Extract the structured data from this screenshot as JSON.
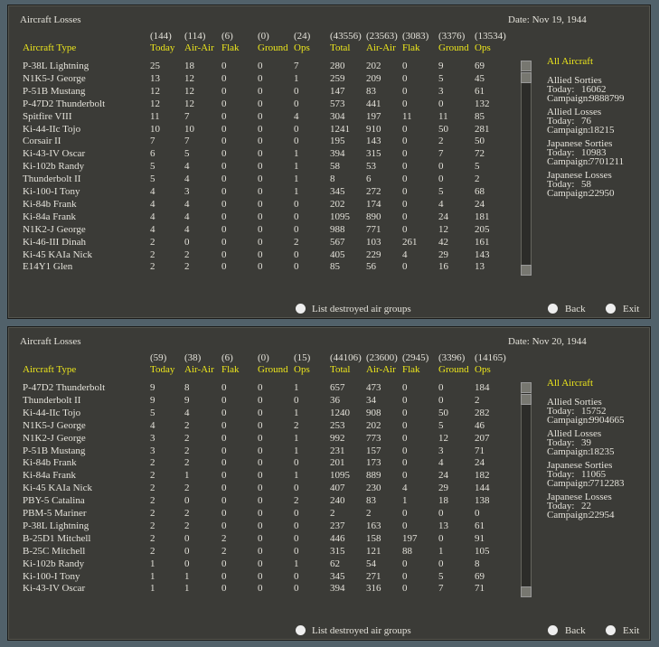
{
  "panels": [
    {
      "title": "Aircraft Losses",
      "date": "Date: Nov 19, 1944",
      "totals": [
        "(144)",
        "(114)",
        "(6)",
        "(0)",
        "(24)",
        "(43556)",
        "(23563)",
        "(3083)",
        "(3376)",
        "(13534)"
      ],
      "headers": [
        "Aircraft Type",
        "Today",
        "Air-Air",
        "Flak",
        "Ground",
        "Ops",
        "Total",
        "Air-Air",
        "Flak",
        "Ground",
        "Ops"
      ],
      "rows": [
        [
          "P-38L Lightning",
          25,
          18,
          0,
          0,
          7,
          280,
          202,
          0,
          9,
          69
        ],
        [
          "N1K5-J George",
          13,
          12,
          0,
          0,
          1,
          259,
          209,
          0,
          5,
          45
        ],
        [
          "P-51B Mustang",
          12,
          12,
          0,
          0,
          0,
          147,
          83,
          0,
          3,
          61
        ],
        [
          "P-47D2 Thunderbolt",
          12,
          12,
          0,
          0,
          0,
          573,
          441,
          0,
          0,
          132
        ],
        [
          "Spitfire VIII",
          11,
          7,
          0,
          0,
          4,
          304,
          197,
          11,
          11,
          85
        ],
        [
          "Ki-44-IIc Tojo",
          10,
          10,
          0,
          0,
          0,
          1241,
          910,
          0,
          50,
          281
        ],
        [
          "Corsair II",
          7,
          7,
          0,
          0,
          0,
          195,
          143,
          0,
          2,
          50
        ],
        [
          "Ki-43-IV Oscar",
          6,
          5,
          0,
          0,
          1,
          394,
          315,
          0,
          7,
          72
        ],
        [
          "Ki-102b Randy",
          5,
          4,
          0,
          0,
          1,
          58,
          53,
          0,
          0,
          5
        ],
        [
          "Thunderbolt II",
          5,
          4,
          0,
          0,
          1,
          8,
          6,
          0,
          0,
          2
        ],
        [
          "Ki-100-I Tony",
          4,
          3,
          0,
          0,
          1,
          345,
          272,
          0,
          5,
          68
        ],
        [
          "Ki-84b Frank",
          4,
          4,
          0,
          0,
          0,
          202,
          174,
          0,
          4,
          24
        ],
        [
          "Ki-84a Frank",
          4,
          4,
          0,
          0,
          0,
          1095,
          890,
          0,
          24,
          181
        ],
        [
          "N1K2-J George",
          4,
          4,
          0,
          0,
          0,
          988,
          771,
          0,
          12,
          205
        ],
        [
          "Ki-46-III Dinah",
          2,
          0,
          0,
          0,
          2,
          567,
          103,
          261,
          42,
          161
        ],
        [
          "Ki-45 KAIa Nick",
          2,
          2,
          0,
          0,
          0,
          405,
          229,
          4,
          29,
          143
        ],
        [
          "E14Y1 Glen",
          2,
          2,
          0,
          0,
          0,
          85,
          56,
          0,
          16,
          13
        ]
      ],
      "side": {
        "heading": "All Aircraft",
        "stats": [
          {
            "label": "Allied Sorties",
            "today_label": "Today:",
            "today": 16062,
            "campaign_label": "Campaign:",
            "campaign": 9888799
          },
          {
            "label": "Allied Losses",
            "today_label": "Today:",
            "today": 76,
            "campaign_label": "Campaign:",
            "campaign": 18215
          },
          {
            "label": "Japanese Sorties",
            "today_label": "Today:",
            "today": 10983,
            "campaign_label": "Campaign:",
            "campaign": 7701211
          },
          {
            "label": "Japanese Losses",
            "today_label": "Today:",
            "today": 58,
            "campaign_label": "Campaign:",
            "campaign": 22950
          }
        ]
      },
      "buttons": {
        "list": "List destroyed air groups",
        "back": "Back",
        "exit": "Exit"
      }
    },
    {
      "title": "Aircraft Losses",
      "date": "Date: Nov 20, 1944",
      "totals": [
        "(59)",
        "(38)",
        "(6)",
        "(0)",
        "(15)",
        "(44106)",
        "(23600)",
        "(2945)",
        "(3396)",
        "(14165)"
      ],
      "headers": [
        "Aircraft Type",
        "Today",
        "Air-Air",
        "Flak",
        "Ground",
        "Ops",
        "Total",
        "Air-Air",
        "Flak",
        "Ground",
        "Ops"
      ],
      "rows": [
        [
          "P-47D2 Thunderbolt",
          9,
          8,
          0,
          0,
          1,
          657,
          473,
          0,
          0,
          184
        ],
        [
          "Thunderbolt II",
          9,
          9,
          0,
          0,
          0,
          36,
          34,
          0,
          0,
          2
        ],
        [
          "Ki-44-IIc Tojo",
          5,
          4,
          0,
          0,
          1,
          1240,
          908,
          0,
          50,
          282
        ],
        [
          "N1K5-J George",
          4,
          2,
          0,
          0,
          2,
          253,
          202,
          0,
          5,
          46
        ],
        [
          "N1K2-J George",
          3,
          2,
          0,
          0,
          1,
          992,
          773,
          0,
          12,
          207
        ],
        [
          "P-51B Mustang",
          3,
          2,
          0,
          0,
          1,
          231,
          157,
          0,
          3,
          71
        ],
        [
          "Ki-84b Frank",
          2,
          2,
          0,
          0,
          0,
          201,
          173,
          0,
          4,
          24
        ],
        [
          "Ki-84a Frank",
          2,
          1,
          0,
          0,
          1,
          1095,
          889,
          0,
          24,
          182
        ],
        [
          "Ki-45 KAIa Nick",
          2,
          2,
          0,
          0,
          0,
          407,
          230,
          4,
          29,
          144
        ],
        [
          "PBY-5 Catalina",
          2,
          0,
          0,
          0,
          2,
          240,
          83,
          1,
          18,
          138
        ],
        [
          "PBM-5 Mariner",
          2,
          2,
          0,
          0,
          0,
          2,
          2,
          0,
          0,
          0
        ],
        [
          "P-38L Lightning",
          2,
          2,
          0,
          0,
          0,
          237,
          163,
          0,
          13,
          61
        ],
        [
          "B-25D1 Mitchell",
          2,
          0,
          2,
          0,
          0,
          446,
          158,
          197,
          0,
          91
        ],
        [
          "B-25C Mitchell",
          2,
          0,
          2,
          0,
          0,
          315,
          121,
          88,
          1,
          105
        ],
        [
          "Ki-102b Randy",
          1,
          0,
          0,
          0,
          1,
          62,
          54,
          0,
          0,
          8
        ],
        [
          "Ki-100-I Tony",
          1,
          1,
          0,
          0,
          0,
          345,
          271,
          0,
          5,
          69
        ],
        [
          "Ki-43-IV Oscar",
          1,
          1,
          0,
          0,
          0,
          394,
          316,
          0,
          7,
          71
        ]
      ],
      "side": {
        "heading": "All Aircraft",
        "stats": [
          {
            "label": "Allied Sorties",
            "today_label": "Today:",
            "today": 15752,
            "campaign_label": "Campaign:",
            "campaign": 9904665
          },
          {
            "label": "Allied Losses",
            "today_label": "Today:",
            "today": 39,
            "campaign_label": "Campaign:",
            "campaign": 18235
          },
          {
            "label": "Japanese Sorties",
            "today_label": "Today:",
            "today": 11065,
            "campaign_label": "Campaign:",
            "campaign": 7712283
          },
          {
            "label": "Japanese Losses",
            "today_label": "Today:",
            "today": 22,
            "campaign_label": "Campaign:",
            "campaign": 22954
          }
        ]
      },
      "buttons": {
        "list": "List destroyed air groups",
        "back": "Back",
        "exit": "Exit"
      }
    }
  ]
}
